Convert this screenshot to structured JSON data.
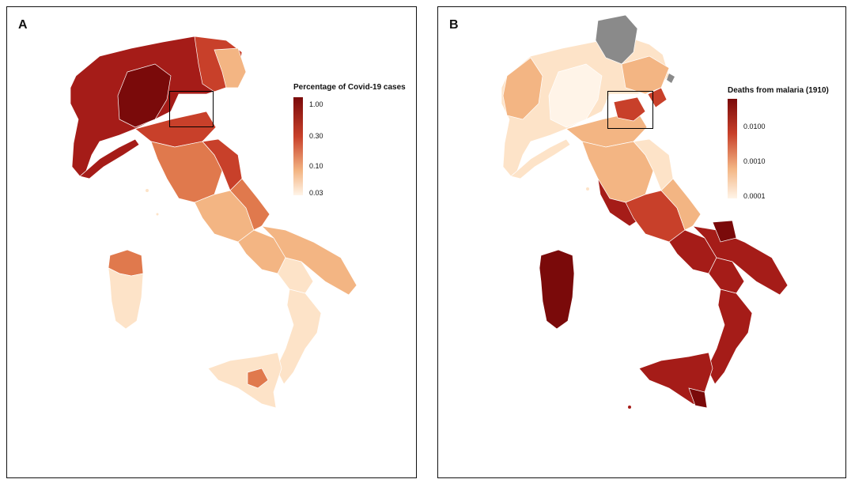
{
  "figure": {
    "panels": [
      {
        "letter": "A",
        "legend_title": "Percentage of Covid-19 cases",
        "ticks": [
          "1.00",
          "0.30",
          "0.10",
          "0.03"
        ],
        "scale": "log"
      },
      {
        "letter": "B",
        "legend_title": "Deaths from malaria (1910)",
        "ticks": [
          "0.0100",
          "0.0010",
          "0.0001"
        ],
        "scale": "log"
      }
    ],
    "colors": {
      "darkest": "#7a0a0a",
      "dark": "#a51c18",
      "mid_dark": "#c8402a",
      "mid": "#e0794d",
      "light": "#f3b583",
      "lightest": "#fde3c8",
      "pale": "#fff4e8",
      "missing": "#8a8a8a"
    }
  }
}
